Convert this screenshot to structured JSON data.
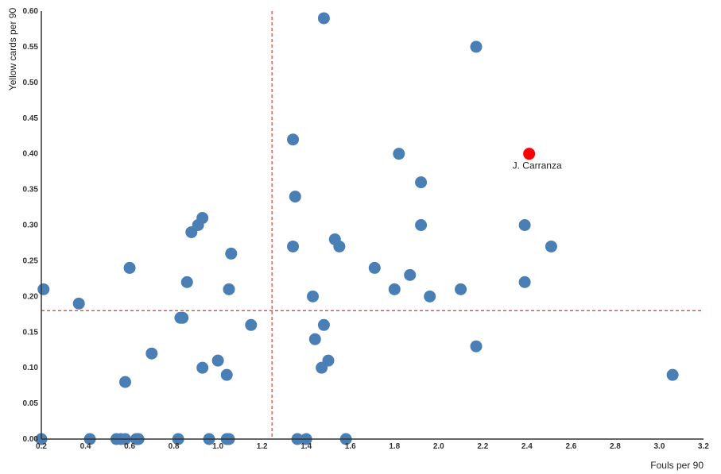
{
  "chart_data": {
    "type": "scatter",
    "title": "",
    "xlabel": "Fouls per 90",
    "ylabel": "Yellow cards per 90",
    "xlim": [
      0.2,
      3.2
    ],
    "ylim": [
      0.0,
      0.6
    ],
    "x_ticks": [
      "0.2",
      "0.4",
      "0.6",
      "0.8",
      "1.0",
      "1.2",
      "1.4",
      "1.6",
      "1.8",
      "2.0",
      "2.2",
      "2.4",
      "2.6",
      "2.8",
      "3.0",
      "3.2"
    ],
    "y_ticks": [
      "0.00",
      "0.05",
      "0.10",
      "0.15",
      "0.20",
      "0.25",
      "0.30",
      "0.35",
      "0.40",
      "0.45",
      "0.50",
      "0.55",
      "0.60"
    ],
    "grid": false,
    "legend": null,
    "reference_lines": {
      "x_mean": 1.245,
      "y_mean": 0.18,
      "style": "dashed",
      "color": "#e8463c"
    },
    "colors": {
      "point": "#4a7fb5",
      "highlight": "#ff0000",
      "axis": "#333333"
    },
    "highlight": {
      "name": "J. Carranza",
      "x": 2.41,
      "y": 0.4
    },
    "series": [
      {
        "name": "Players",
        "points": [
          [
            0.2,
            0.0
          ],
          [
            0.21,
            0.21
          ],
          [
            0.37,
            0.19
          ],
          [
            0.42,
            0.0
          ],
          [
            0.54,
            0.0
          ],
          [
            0.56,
            0.0
          ],
          [
            0.58,
            0.0
          ],
          [
            0.63,
            0.0
          ],
          [
            0.64,
            0.0
          ],
          [
            0.58,
            0.08
          ],
          [
            0.6,
            0.24
          ],
          [
            0.7,
            0.12
          ],
          [
            0.82,
            0.0
          ],
          [
            0.83,
            0.17
          ],
          [
            0.84,
            0.17
          ],
          [
            0.86,
            0.22
          ],
          [
            0.88,
            0.29
          ],
          [
            0.91,
            0.3
          ],
          [
            0.93,
            0.31
          ],
          [
            0.93,
            0.1
          ],
          [
            0.96,
            0.0
          ],
          [
            1.0,
            0.11
          ],
          [
            1.04,
            0.09
          ],
          [
            1.04,
            0.0
          ],
          [
            1.05,
            0.0
          ],
          [
            1.05,
            0.21
          ],
          [
            1.06,
            0.26
          ],
          [
            1.15,
            0.16
          ],
          [
            1.34,
            0.42
          ],
          [
            1.35,
            0.34
          ],
          [
            1.34,
            0.27
          ],
          [
            1.36,
            0.0
          ],
          [
            1.4,
            0.0
          ],
          [
            1.43,
            0.2
          ],
          [
            1.44,
            0.14
          ],
          [
            1.47,
            0.1
          ],
          [
            1.48,
            0.16
          ],
          [
            1.48,
            0.59
          ],
          [
            1.5,
            0.11
          ],
          [
            1.53,
            0.28
          ],
          [
            1.55,
            0.27
          ],
          [
            1.58,
            0.0
          ],
          [
            1.71,
            0.24
          ],
          [
            1.8,
            0.21
          ],
          [
            1.82,
            0.4
          ],
          [
            1.87,
            0.23
          ],
          [
            1.92,
            0.36
          ],
          [
            1.92,
            0.3
          ],
          [
            1.96,
            0.2
          ],
          [
            2.1,
            0.21
          ],
          [
            2.17,
            0.55
          ],
          [
            2.17,
            0.13
          ],
          [
            2.39,
            0.22
          ],
          [
            2.39,
            0.3
          ],
          [
            2.51,
            0.27
          ],
          [
            3.06,
            0.09
          ]
        ]
      }
    ]
  }
}
